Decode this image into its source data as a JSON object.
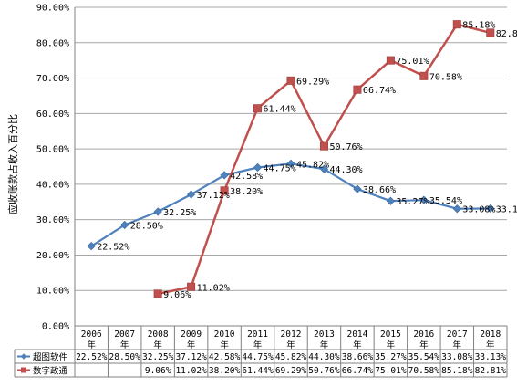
{
  "chart_data": {
    "type": "line",
    "ylabel": "应收账款占收入百分比",
    "ylim": [
      0,
      90
    ],
    "y_ticks": [
      "0.00%",
      "10.00%",
      "20.00%",
      "30.00%",
      "40.00%",
      "50.00%",
      "60.00%",
      "70.00%",
      "80.00%",
      "90.00%"
    ],
    "categories": [
      "2006",
      "2007",
      "2008",
      "2009",
      "2010",
      "2011",
      "2012",
      "2013",
      "2014",
      "2015",
      "2016",
      "2017",
      "2018"
    ],
    "category_suffix": "年",
    "grid": true,
    "legend": "bottom-table",
    "series": [
      {
        "name": "超图软件",
        "color": "#4f81bd",
        "marker": "diamond",
        "values": [
          22.52,
          28.5,
          32.25,
          37.12,
          42.58,
          44.75,
          45.82,
          44.3,
          38.66,
          35.27,
          35.54,
          33.08,
          33.13
        ],
        "labels": [
          "22.52%",
          "28.50%",
          "32.25%",
          "37.12%",
          "42.58%",
          "44.75%",
          "45.82%",
          "44.30%",
          "38.66%",
          "35.27%",
          "35.54%",
          "33.08%",
          "33.13%"
        ]
      },
      {
        "name": "数字政通",
        "color": "#c0504d",
        "marker": "square",
        "values": [
          null,
          null,
          9.06,
          11.02,
          38.2,
          61.44,
          69.29,
          50.76,
          66.74,
          75.01,
          70.58,
          85.18,
          82.81
        ],
        "labels": [
          "",
          "",
          "9.06%",
          "11.02%",
          "38.20%",
          "61.44%",
          "69.29%",
          "50.76%",
          "66.74%",
          "75.01%",
          "70.58%",
          "85.18%",
          "82.81%"
        ]
      }
    ]
  }
}
